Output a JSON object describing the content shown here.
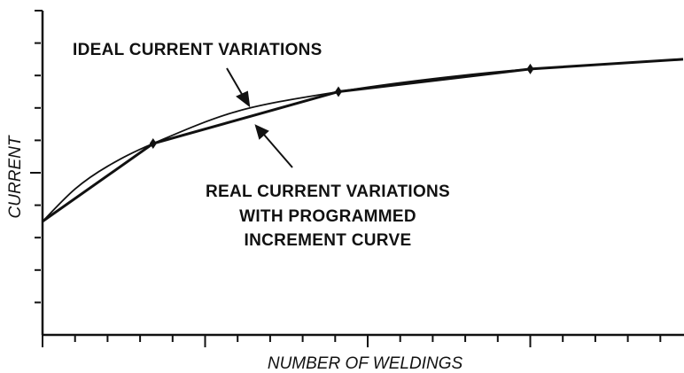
{
  "chart_data": {
    "type": "line",
    "xlabel": "NUMBER OF WELDINGS",
    "ylabel": "CURRENT",
    "annotations": [
      "IDEAL CURRENT VARIATIONS",
      "REAL CURRENT VARIATIONS",
      "WITH PROGRAMMED",
      "INCREMENT CURVE"
    ],
    "xlim": [
      0,
      19.7
    ],
    "ylim": [
      0,
      10
    ],
    "xticks": [
      1,
      2,
      3,
      4,
      5,
      6,
      7,
      8,
      9,
      10,
      11,
      12,
      13,
      14,
      15,
      16,
      17,
      18,
      19
    ],
    "yticks": [
      1,
      2,
      3,
      4,
      5,
      6,
      7,
      8,
      9
    ],
    "series": [
      {
        "name": "IDEAL CURRENT VARIATIONS",
        "color": "#111111",
        "x": [
          0,
          1,
          2,
          3.4,
          6,
          9.1,
          12,
          15,
          19.7
        ],
        "values": [
          3.5,
          4.5,
          5.2,
          5.9,
          6.9,
          7.5,
          7.9,
          8.2,
          8.5
        ]
      },
      {
        "name": "REAL CURRENT VARIATIONS",
        "color": "#111111",
        "x": [
          0,
          3.4,
          9.1,
          15,
          19.7
        ],
        "values": [
          3.5,
          5.9,
          7.5,
          8.2,
          8.5
        ]
      }
    ]
  }
}
